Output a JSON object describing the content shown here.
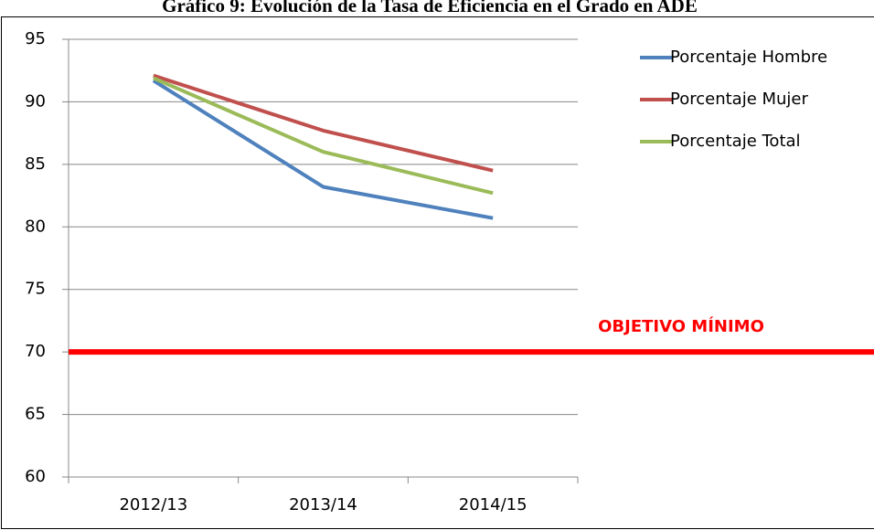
{
  "chart_data": {
    "type": "line",
    "title": "Gráfico 9: Evolución de la Tasa de Eficiencia en el Grado en ADE",
    "categories": [
      "2012/13",
      "2013/14",
      "2014/15"
    ],
    "series": [
      {
        "name": "Porcentaje Hombre",
        "color": "#4f81bd",
        "values": [
          91.7,
          83.2,
          80.7
        ]
      },
      {
        "name": "Porcentaje Mujer",
        "color": "#c0504d",
        "values": [
          92.1,
          87.7,
          84.5
        ]
      },
      {
        "name": "Porcentaje Total",
        "color": "#9bbb59",
        "values": [
          91.9,
          86.0,
          82.7
        ]
      }
    ],
    "ylim": [
      60,
      95
    ],
    "yticks": [
      60,
      65,
      70,
      75,
      80,
      85,
      90,
      95
    ],
    "grid": true,
    "legend": "right",
    "target": {
      "value": 70,
      "label": "OBJETIVO MÍNIMO",
      "color": "#ff0000"
    }
  }
}
